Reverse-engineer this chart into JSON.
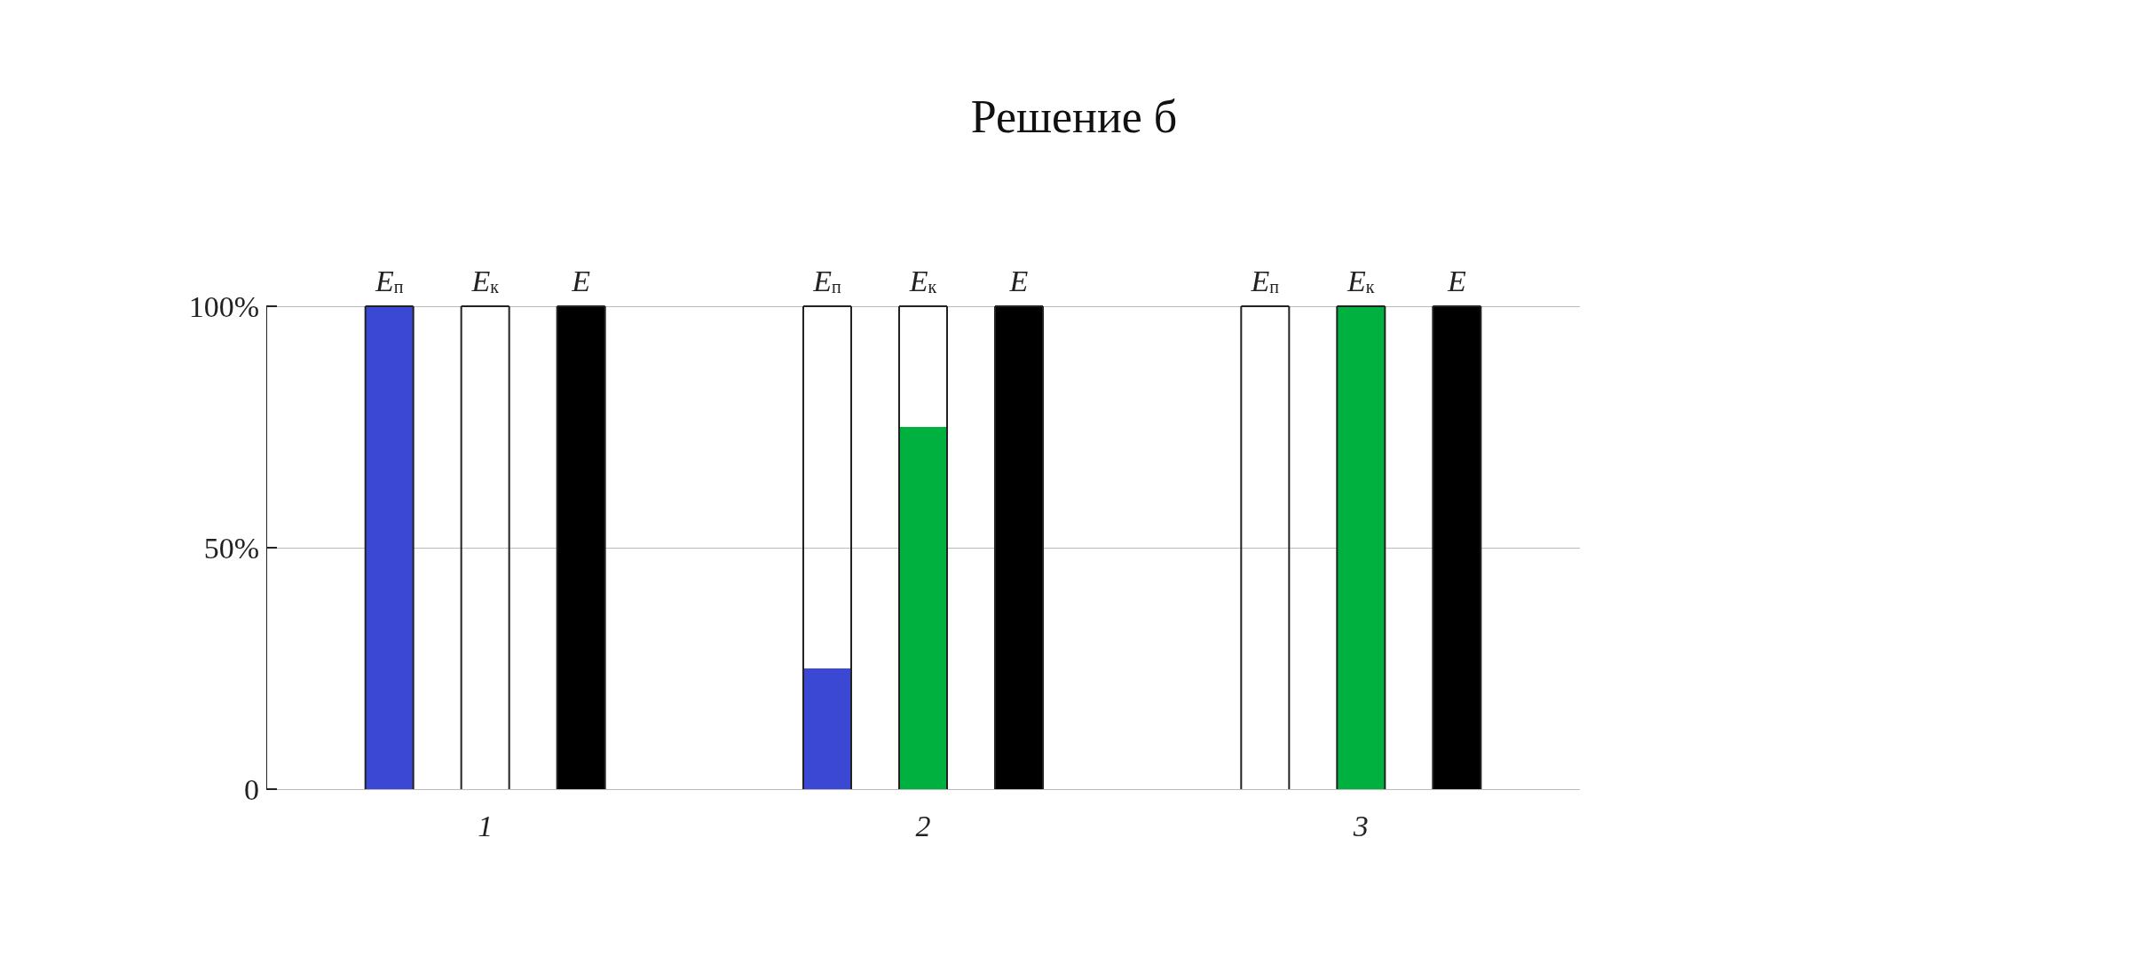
{
  "chart_data": {
    "type": "bar",
    "title": "Решение б",
    "categories": [
      "1",
      "2",
      "3"
    ],
    "series": [
      {
        "name": "E$_{п}$",
        "color": "#3a48d4",
        "values": [
          100,
          25,
          0
        ]
      },
      {
        "name": "E$_{к}$",
        "color": "#00b140",
        "values": [
          0,
          75,
          100
        ]
      },
      {
        "name": "E",
        "color": "#000000",
        "values": [
          100,
          100,
          100
        ]
      }
    ],
    "ylim": [
      0,
      100
    ],
    "yticks": [
      {
        "value": 0,
        "label": "0"
      },
      {
        "value": 50,
        "label": "50%"
      },
      {
        "value": 100,
        "label": "100%"
      }
    ],
    "grid": "y",
    "legend": false
  }
}
